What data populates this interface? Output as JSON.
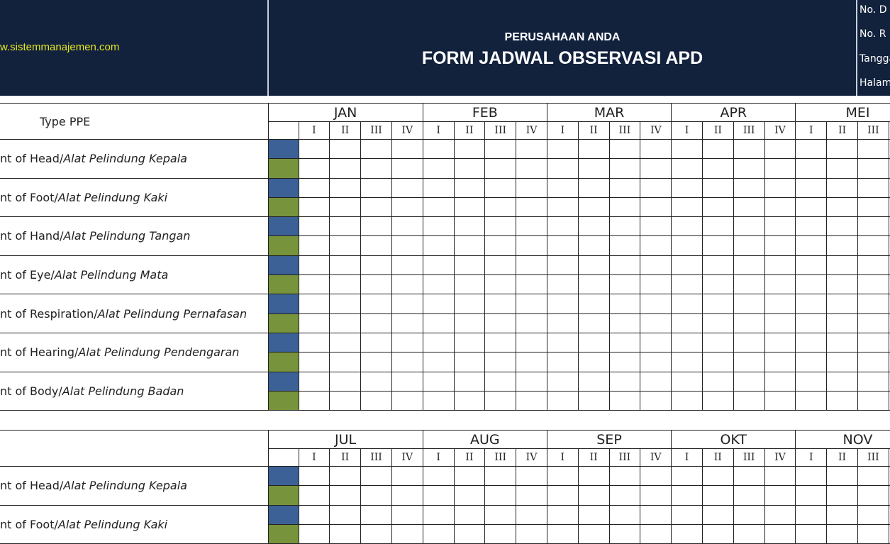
{
  "header": {
    "website": "w.sistemmanajemen.com",
    "company": "PERUSAHAAN ANDA",
    "title": "FORM JADWAL OBSERVASI APD",
    "meta": [
      "No. D",
      "No. R",
      "Tangga",
      "Halam"
    ]
  },
  "colors": {
    "header_bg": "#12223d",
    "plan": "#3b6196",
    "actual": "#77933c"
  },
  "type_header": "Type PPE",
  "weeks": [
    "I",
    "II",
    "III",
    "IV"
  ],
  "table1": {
    "months": [
      "JAN",
      "FEB",
      "MAR",
      "APR",
      "MEI"
    ],
    "items": [
      {
        "en": "nt of Head/",
        "id": "Alat Pelindung Kepala"
      },
      {
        "en": "nt of Foot/",
        "id": "Alat Pelindung Kaki"
      },
      {
        "en": "nt of Hand/",
        "id": "Alat Pelindung Tangan"
      },
      {
        "en": "nt of Eye/",
        "id": "Alat Pelindung Mata"
      },
      {
        "en": "nt of Respiration/",
        "id": "Alat Pelindung Pernafasan"
      },
      {
        "en": "nt of Hearing/",
        "id": "Alat Pelindung Pendengaran"
      },
      {
        "en": "nt of Body/",
        "id": "Alat Pelindung Badan"
      }
    ]
  },
  "table2": {
    "months": [
      "JUL",
      "AUG",
      "SEP",
      "OKT",
      "NOV"
    ],
    "items": [
      {
        "en": "nt of Head/",
        "id": "Alat Pelindung Kepala"
      },
      {
        "en": "nt of Foot/",
        "id": "Alat Pelindung Kaki"
      }
    ]
  }
}
